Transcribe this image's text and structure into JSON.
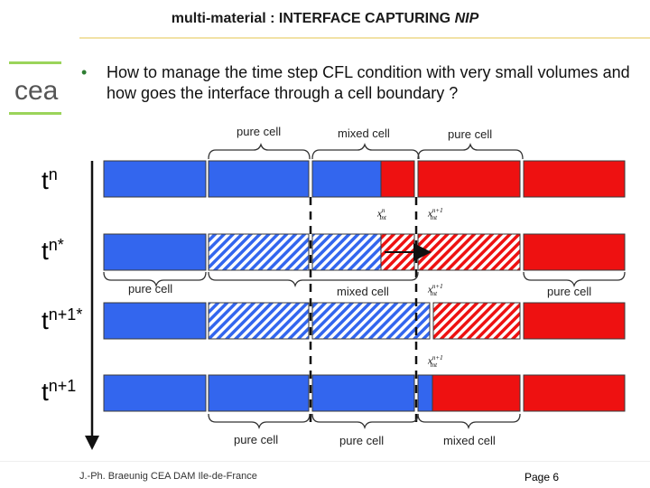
{
  "header": {
    "title_main": "multi-material : INTERFACE CAPTURING ",
    "title_italic": "NIP"
  },
  "bullet": {
    "symbol": "•",
    "text": "How to manage the time step CFL condition with very small volumes and how goes the interface through a cell boundary ?"
  },
  "time_labels": {
    "tn": {
      "base": "t",
      "sup": "n"
    },
    "tnstar": {
      "base": "t",
      "sup": "n*"
    },
    "tn1star": {
      "base": "t",
      "sup": "n+1*"
    },
    "tn1": {
      "base": "t",
      "sup": "n+1"
    }
  },
  "cell_labels": {
    "top": [
      "pure cell",
      "mixed cell",
      "pure cell"
    ],
    "middle": [
      "pure cell",
      "mixed cell",
      "pure cell"
    ],
    "bottom": [
      "pure cell",
      "pure cell",
      "mixed cell"
    ]
  },
  "interface_labels": {
    "x_n": {
      "base": "x",
      "sup": "n",
      "sub": "int"
    },
    "x_n1": {
      "base": "x",
      "sup": "n+1",
      "sub": "int"
    }
  },
  "footer": {
    "author": "J.-Ph. Braeunig CEA DAM Ile-de-France",
    "page": "Page 6"
  },
  "colors": {
    "blue": "#3366ee",
    "red": "#ee1111",
    "outline": "#3a3a3a",
    "bullet": "#2e7d32",
    "logo_green": "#9bd45a"
  }
}
